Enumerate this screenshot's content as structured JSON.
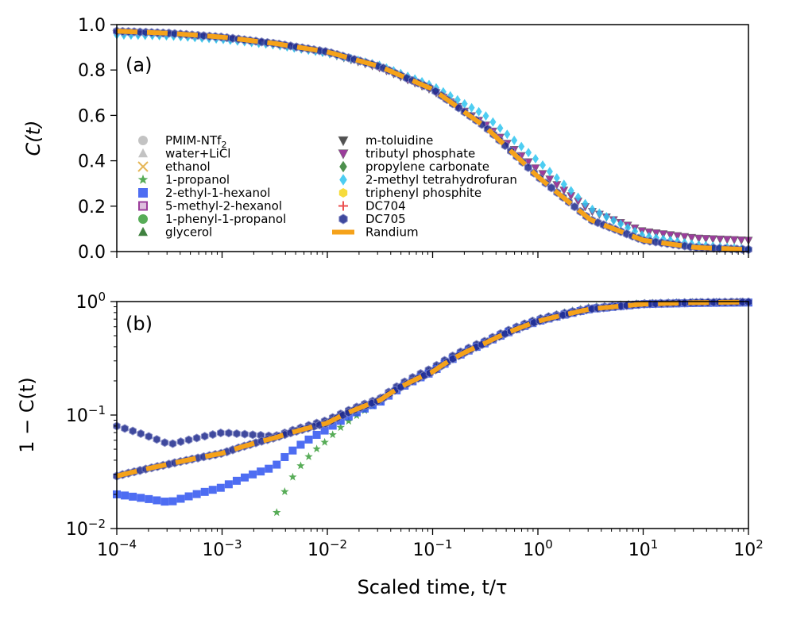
{
  "figure": {
    "xlabel": "Scaled time, t/τ",
    "xlim": [
      0.0001,
      100
    ]
  },
  "chart_data": [
    {
      "type": "scatter",
      "panel": "(a)",
      "ylabel": "C(t)",
      "xscale": "log",
      "yscale": "linear",
      "xlim": [
        0.0001,
        100
      ],
      "ylim": [
        0.0,
        1.0
      ],
      "x_ticks": [
        "10^-4",
        "10^-3",
        "10^-2",
        "10^-1",
        "10^0",
        "10^1",
        "10^2"
      ],
      "y_ticks": [
        "0.0",
        "0.2",
        "0.4",
        "0.6",
        "0.8",
        "1.0"
      ],
      "legend_position": "lower-left",
      "x": [
        0.0001,
        0.000316,
        0.001,
        0.00316,
        0.01,
        0.0316,
        0.1,
        0.316,
        1,
        3.16,
        10,
        31.6,
        100
      ],
      "series": [
        {
          "name": "Randium",
          "values": [
            0.971,
            0.962,
            0.945,
            0.917,
            0.88,
            0.815,
            0.715,
            0.55,
            0.33,
            0.14,
            0.05,
            0.018,
            0.009
          ]
        },
        {
          "name": "tributyl phosphate",
          "values": [
            0.96,
            0.955,
            0.94,
            0.915,
            0.875,
            0.81,
            0.71,
            0.56,
            0.36,
            0.18,
            0.09,
            0.06,
            0.05
          ]
        },
        {
          "name": "2-methyl tetrahydrofuran",
          "values": [
            0.955,
            0.95,
            0.935,
            0.91,
            0.875,
            0.82,
            0.73,
            0.6,
            0.4,
            0.19,
            0.07,
            0.03,
            0.01
          ]
        }
      ],
      "legend": [
        {
          "label": "PMIM-NTf",
          "sub": "2",
          "marker": "circle",
          "color": "#b8b8b8"
        },
        {
          "label": "water+LiCl",
          "marker": "triangle-up",
          "color": "#b8b8b8"
        },
        {
          "label": "ethanol",
          "marker": "x",
          "color": "#e0a93a"
        },
        {
          "label": "1-propanol",
          "marker": "star",
          "color": "#3a9e3a"
        },
        {
          "label": "2-ethyl-1-hexanol",
          "marker": "square",
          "color": "#2f54f0"
        },
        {
          "label": "5-methyl-2-hexanol",
          "marker": "square-open",
          "color": "#8a1c8a"
        },
        {
          "label": "1-phenyl-1-propanol",
          "marker": "circle",
          "color": "#3a9e3a"
        },
        {
          "label": "glycerol",
          "marker": "triangle-up",
          "color": "#1f6b1f"
        },
        {
          "label": "m-toluidine",
          "marker": "triangle-down",
          "color": "#333333"
        },
        {
          "label": "tributyl phosphate",
          "marker": "triangle-down",
          "color": "#8a1c8a"
        },
        {
          "label": "propylene carbonate",
          "marker": "diamond",
          "color": "#2e7d2e"
        },
        {
          "label": "2-methyl tetrahydrofuran",
          "marker": "diamond",
          "color": "#2ec4f0"
        },
        {
          "label": "triphenyl phosphite",
          "marker": "hexagon",
          "color": "#f5d51a"
        },
        {
          "label": "DC704",
          "marker": "plus",
          "color": "#e83030"
        },
        {
          "label": "DC705",
          "marker": "hexagon",
          "color": "#1e2a8c"
        },
        {
          "label": "Randium",
          "marker": "line",
          "color": "#f5a21a"
        }
      ]
    },
    {
      "type": "scatter",
      "panel": "(b)",
      "ylabel": "1 − C(t)",
      "xscale": "log",
      "yscale": "log",
      "xlim": [
        0.0001,
        100
      ],
      "ylim": [
        0.01,
        1.0
      ],
      "x_ticks": [
        "10^-4",
        "10^-3",
        "10^-2",
        "10^-1",
        "10^0",
        "10^1",
        "10^2"
      ],
      "y_ticks": [
        "10^-2",
        "10^-1",
        "10^0"
      ],
      "x": [
        0.0001,
        0.000316,
        0.001,
        0.00316,
        0.01,
        0.0316,
        0.1,
        0.316,
        1,
        3.16,
        10,
        31.6,
        100
      ],
      "series": [
        {
          "name": "Randium",
          "values": [
            0.029,
            0.037,
            0.046,
            0.063,
            0.085,
            0.135,
            0.24,
            0.43,
            0.67,
            0.86,
            0.95,
            0.98,
            0.99
          ]
        },
        {
          "name": "1-propanol",
          "values": [
            null,
            null,
            null,
            0.012,
            0.06,
            0.13,
            0.25,
            0.44,
            0.7,
            0.9,
            0.97,
            0.99,
            0.99
          ]
        },
        {
          "name": "DC705",
          "values": [
            0.08,
            0.055,
            0.07,
            0.065,
            0.09,
            0.14,
            0.26,
            0.45,
            0.7,
            0.88,
            0.96,
            0.98,
            0.99
          ]
        },
        {
          "name": "2-ethyl-1-hexanol",
          "values": [
            0.02,
            0.017,
            0.023,
            0.035,
            0.075,
            0.13,
            0.24,
            0.43,
            0.67,
            0.86,
            0.95,
            0.97,
            0.98
          ]
        }
      ]
    }
  ]
}
